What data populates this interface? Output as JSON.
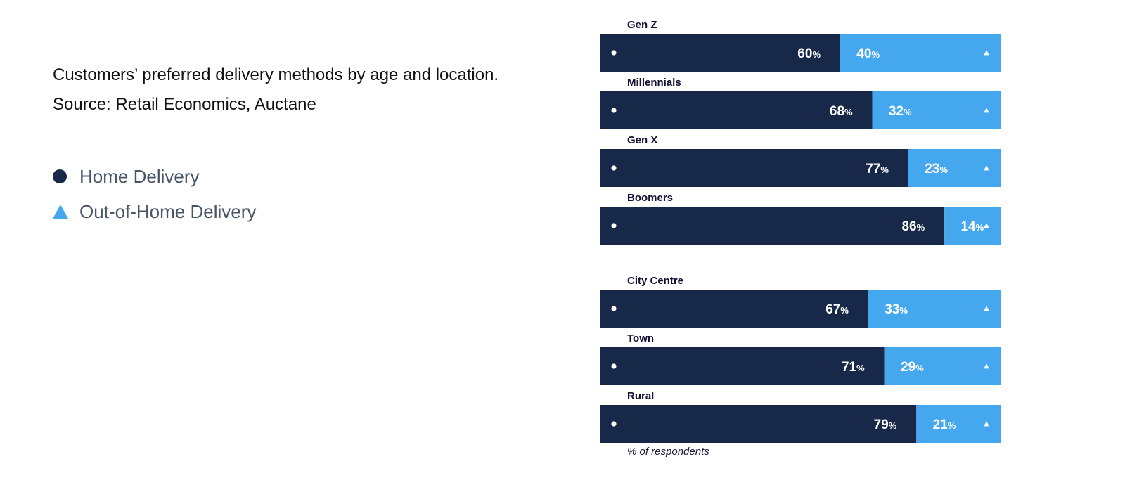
{
  "caption": {
    "line1": "Customers’ preferred delivery methods by age and location.",
    "line2": "Source: Retail Economics, Auctane"
  },
  "legend": [
    {
      "label": "Home Delivery",
      "icon": "circle-marker-icon"
    },
    {
      "label": "Out-of-Home Delivery",
      "icon": "triangle-marker-icon"
    }
  ],
  "colors": {
    "home": "#172848",
    "out_of_home": "#45a8ef",
    "label": "#111133"
  },
  "footnote": "% of respondents",
  "chart_data": {
    "type": "bar",
    "orientation": "horizontal",
    "stacked": true,
    "unit": "%",
    "categories": [
      "Gen Z",
      "Millennials",
      "Gen X",
      "Boomers",
      "City Centre",
      "Town",
      "Rural"
    ],
    "groups": [
      [
        "Gen Z",
        "Millennials",
        "Gen X",
        "Boomers"
      ],
      [
        "City Centre",
        "Town",
        "Rural"
      ]
    ],
    "series": [
      {
        "name": "Home Delivery",
        "values": [
          60,
          68,
          77,
          86,
          67,
          71,
          79
        ]
      },
      {
        "name": "Out-of-Home Delivery",
        "values": [
          40,
          32,
          23,
          14,
          33,
          29,
          21
        ]
      }
    ],
    "xlim": [
      0,
      100
    ]
  }
}
